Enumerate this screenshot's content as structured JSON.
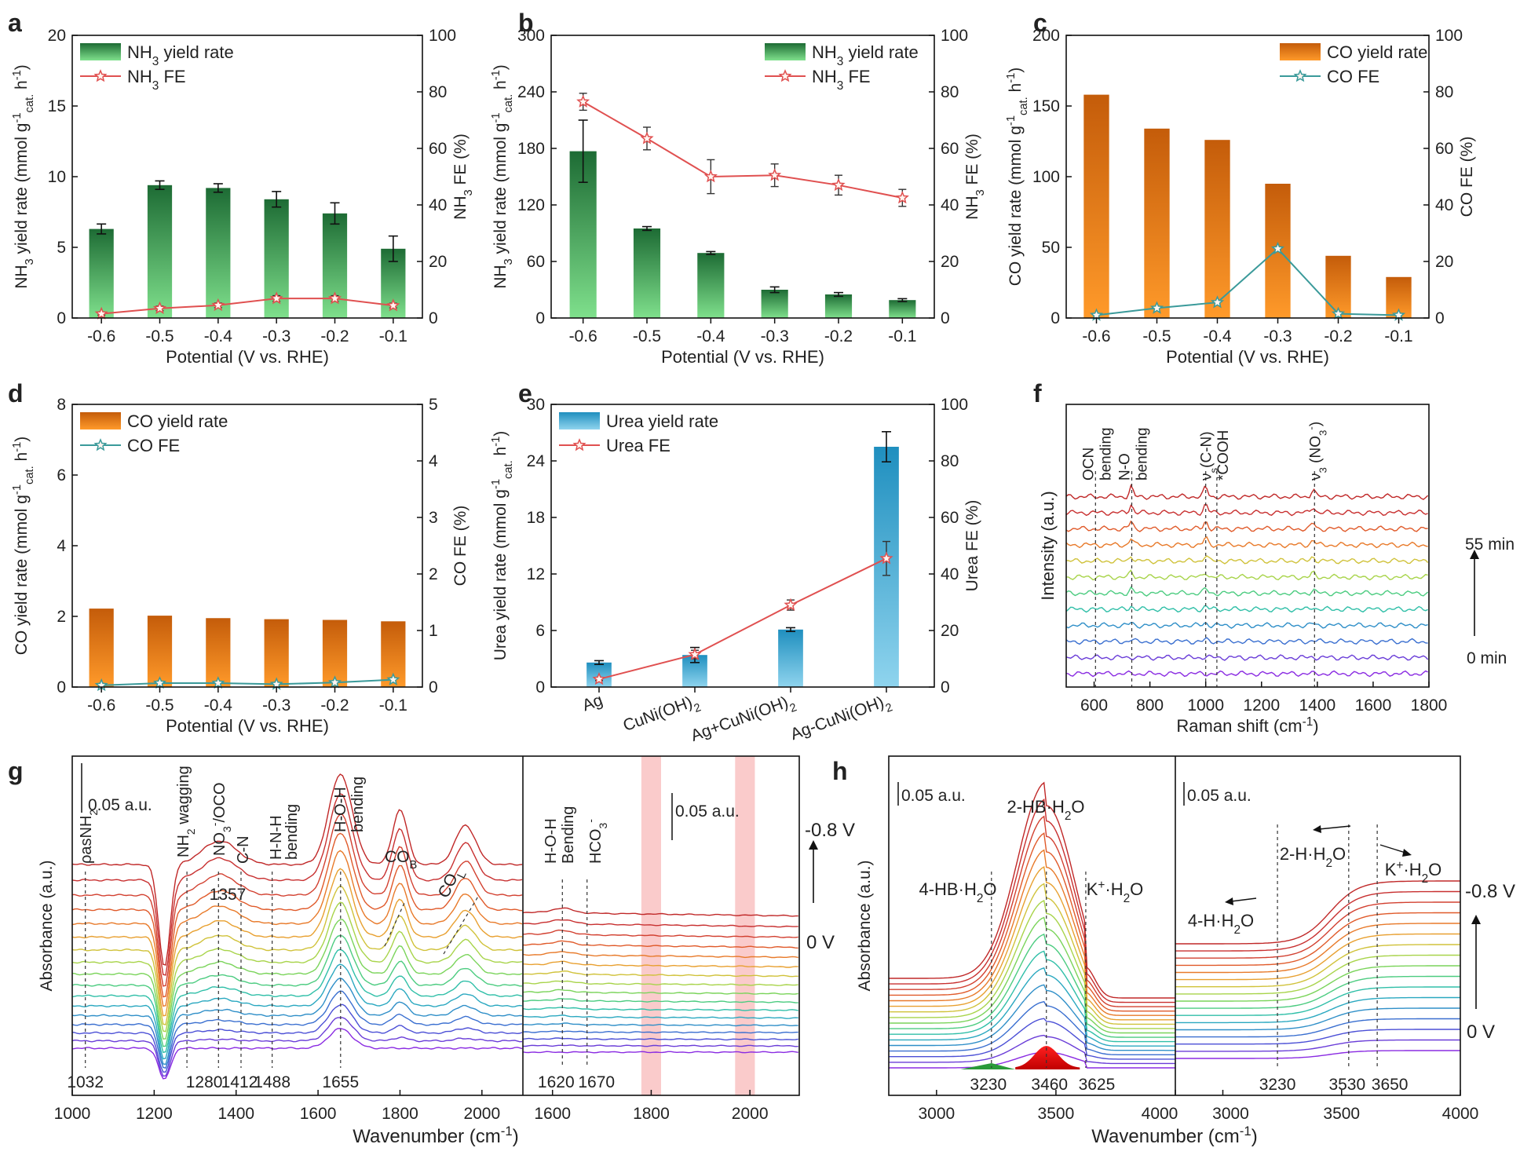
{
  "chart_data": [
    {
      "panel": "a",
      "type": "bar",
      "categories": [
        "-0.6",
        "-0.5",
        "-0.4",
        "-0.3",
        "-0.2",
        "-0.1"
      ],
      "xlabel": "Potential (V vs. RHE)",
      "ylabel": "NH3 yield rate (mmol g-1cat. h-1)",
      "y2label": "NH3 FE (%)",
      "ylim": [
        0,
        20
      ],
      "y2lim": [
        0,
        100
      ],
      "yticks": [
        "0",
        "5",
        "10",
        "15",
        "20"
      ],
      "y2ticks": [
        "0",
        "20",
        "40",
        "60",
        "80",
        "100"
      ],
      "bar_style": "green",
      "legend": [
        "NH3 yield rate",
        "NH3 FE"
      ],
      "bars": [
        6.3,
        9.4,
        9.2,
        8.4,
        7.4,
        4.9
      ],
      "bar_err": [
        0.35,
        0.3,
        0.3,
        0.55,
        0.75,
        0.9
      ],
      "line": [
        1.5,
        3.4,
        4.5,
        6.9,
        6.9,
        4.4
      ],
      "line_err": [
        0.5,
        0.8,
        0.8,
        1.0,
        1.0,
        0.8
      ],
      "line_color": "#e05050"
    },
    {
      "panel": "b",
      "type": "bar",
      "categories": [
        "-0.6",
        "-0.5",
        "-0.4",
        "-0.3",
        "-0.2",
        "-0.1"
      ],
      "xlabel": "Potential (V vs. RHE)",
      "ylabel": "NH3 yield rate (mmol g-1cat. h-1)",
      "y2label": "NH3 FE (%)",
      "ylim": [
        0,
        300
      ],
      "y2lim": [
        0,
        100
      ],
      "yticks": [
        "0",
        "60",
        "120",
        "180",
        "240",
        "300"
      ],
      "y2ticks": [
        "0",
        "20",
        "40",
        "60",
        "80",
        "100"
      ],
      "bar_style": "green",
      "legend": [
        "NH3 yield rate",
        "NH3 FE"
      ],
      "bars": [
        177,
        95,
        69,
        30,
        25,
        19
      ],
      "bar_err": [
        33,
        2,
        1.5,
        3,
        2,
        1.5
      ],
      "line": [
        76.5,
        63.5,
        50,
        50.5,
        47,
        42.5
      ],
      "line_err": [
        3,
        4,
        6,
        4,
        3.5,
        3
      ],
      "line_color": "#e05050"
    },
    {
      "panel": "c",
      "type": "bar",
      "categories": [
        "-0.6",
        "-0.5",
        "-0.4",
        "-0.3",
        "-0.2",
        "-0.1"
      ],
      "xlabel": "Potential (V vs. RHE)",
      "ylabel": "CO yield rate (mmol g-1cat. h-1)",
      "y2label": "CO FE (%)",
      "ylim": [
        0,
        200
      ],
      "y2lim": [
        0,
        100
      ],
      "yticks": [
        "0",
        "50",
        "100",
        "150",
        "200"
      ],
      "y2ticks": [
        "0",
        "20",
        "40",
        "60",
        "80",
        "100"
      ],
      "bar_style": "orange",
      "legend": [
        "CO yield rate",
        "CO FE"
      ],
      "bars": [
        158,
        134,
        126,
        95,
        44,
        29
      ],
      "bar_err": [],
      "line": [
        1.0,
        3.5,
        5.5,
        24.5,
        1.5,
        1.0
      ],
      "line_err": [],
      "line_color": "#3a9a9a"
    },
    {
      "panel": "d",
      "type": "bar",
      "categories": [
        "-0.6",
        "-0.5",
        "-0.4",
        "-0.3",
        "-0.2",
        "-0.1"
      ],
      "xlabel": "Potential (V vs. RHE)",
      "ylabel": "CO yield rate (mmol g-1cat. h-1)",
      "y2label": "CO FE (%)",
      "ylim": [
        0,
        8
      ],
      "y2lim": [
        0,
        5
      ],
      "yticks": [
        "0",
        "2",
        "4",
        "6",
        "8"
      ],
      "y2ticks": [
        "0",
        "1",
        "2",
        "3",
        "4",
        "5"
      ],
      "bar_style": "orange",
      "legend": [
        "CO yield rate",
        "CO FE"
      ],
      "bars": [
        2.22,
        2.02,
        1.95,
        1.92,
        1.9,
        1.86
      ],
      "bar_err": [],
      "line": [
        0.03,
        0.07,
        0.07,
        0.05,
        0.08,
        0.13
      ],
      "line_err": [],
      "line_color": "#3a9a9a"
    },
    {
      "panel": "e",
      "type": "bar",
      "categories": [
        "Ag",
        "CuNi(OH)2",
        "Ag+CuNi(OH)2",
        "Ag-CuNi(OH)2"
      ],
      "xlabel": "",
      "ylabel": "Urea yield rate (mmol g-1cat. h-1)",
      "y2label": "Urea FE (%)",
      "ylim": [
        0,
        30
      ],
      "y2lim": [
        0,
        100
      ],
      "yticks": [
        "0",
        "6",
        "12",
        "18",
        "24",
        "30"
      ],
      "y2ticks": [
        "0",
        "20",
        "40",
        "60",
        "80",
        "100"
      ],
      "bar_style": "blue",
      "legend": [
        "Urea yield rate",
        "Urea FE"
      ],
      "bars": [
        2.6,
        3.4,
        6.1,
        25.5
      ],
      "bar_err": [
        0.2,
        0.8,
        0.2,
        1.6
      ],
      "line": [
        2.8,
        11.5,
        29,
        45.5
      ],
      "line_err": [
        0.5,
        1.5,
        1.8,
        6
      ],
      "line_color": "#e05050"
    },
    {
      "panel": "f",
      "type": "line",
      "xlabel": "Raman shift (cm-1)",
      "ylabel": "Intensity (a.u.)",
      "xlim": [
        500,
        1800
      ],
      "xticks": [
        "600",
        "800",
        "1000",
        "1200",
        "1400",
        "1600",
        "1800"
      ],
      "annotations": [
        "OCN bending",
        "N-O bending",
        "νs(C-N)",
        "*COOH",
        "ν3 (NO3-)"
      ],
      "time_labels": [
        "55 min",
        "0 min"
      ]
    },
    {
      "panel": "g",
      "type": "line",
      "xlabel": "Wavenumber (cm-1)",
      "ylabel": "Absorbance (a.u.)",
      "xlim": [
        1000,
        2100
      ],
      "xticks": [
        "1000",
        "1200",
        "1400",
        "1600",
        "1800",
        "2000",
        "1600",
        "1800",
        "2000"
      ],
      "scale_label": "0.05 a.u.",
      "peak_labels": [
        "1032",
        "1280",
        "1357",
        "1412",
        "1488",
        "1655",
        "1620",
        "1670"
      ],
      "annotations": [
        "ρasNH2",
        "NH2 wagging",
        "NO3-/OCO",
        "C-N",
        "H-N-H bending",
        "H-O-H bending",
        "COB",
        "COL",
        "H-O-H Bending",
        "HCO3-"
      ],
      "potential_labels": [
        "-0.8 V",
        "0 V"
      ]
    },
    {
      "panel": "h",
      "type": "line",
      "xlabel": "Wavenumber (cm-1)",
      "ylabel": "Absorbance (a.u.)",
      "xlim": [
        2800,
        4000
      ],
      "xticks": [
        "3000",
        "3500",
        "4000",
        "3000",
        "3500",
        "4000"
      ],
      "scale_label": "0.05 a.u.",
      "peak_labels": [
        "3230",
        "3460",
        "3625",
        "3230",
        "3530",
        "3650"
      ],
      "annotations": [
        "2-HB·H2O",
        "4-HB·H2O",
        "K+·H2O",
        "2-H·H2O",
        "4-H·H2O",
        "K+·H2O"
      ],
      "potential_labels": [
        "-0.8 V",
        "0 V"
      ]
    }
  ]
}
